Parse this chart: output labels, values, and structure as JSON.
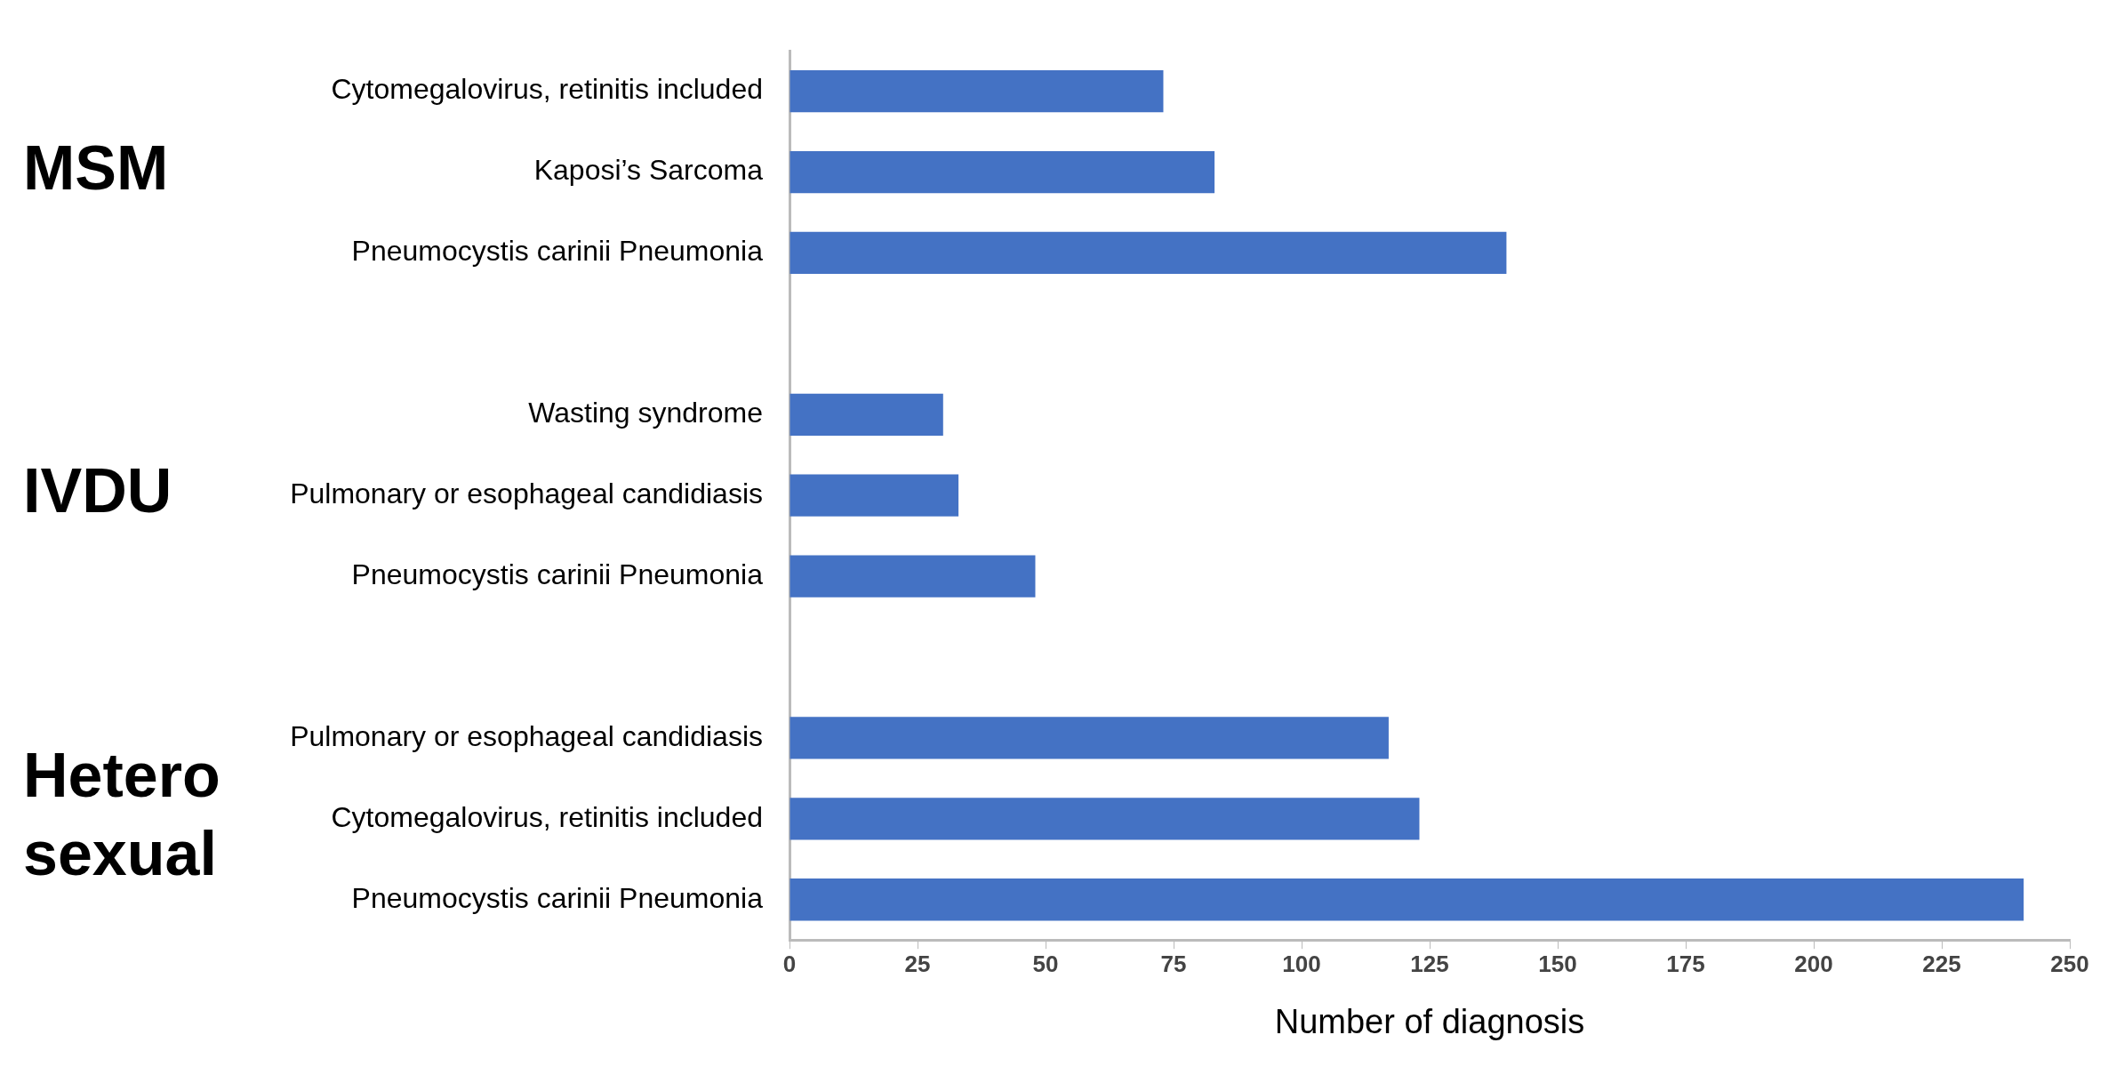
{
  "chart_data": {
    "type": "bar",
    "orientation": "horizontal",
    "xlabel": "Number of diagnosis",
    "categories": [
      "Cytomegalovirus, retinitis included",
      "Kaposi’s Sarcoma",
      "Pneumocystis carinii Pneumonia",
      null,
      "Wasting syndrome",
      "Pulmonary or esophageal candidiasis",
      "Pneumocystis carinii Pneumonia",
      null,
      "Pulmonary or esophageal candidiasis",
      "Cytomegalovirus, retinitis included",
      "Pneumocystis carinii Pneumonia"
    ],
    "values": [
      73,
      83,
      140,
      null,
      30,
      33,
      48,
      null,
      117,
      123,
      241
    ],
    "color": "#4472c4",
    "xlim": [
      0,
      250
    ],
    "xticks": [
      0,
      25,
      50,
      75,
      100,
      125,
      150,
      175,
      200,
      225,
      250
    ],
    "grid": false,
    "legend": false,
    "annotations": [
      "MSM",
      "IVDU",
      "Hetero sexual"
    ]
  }
}
